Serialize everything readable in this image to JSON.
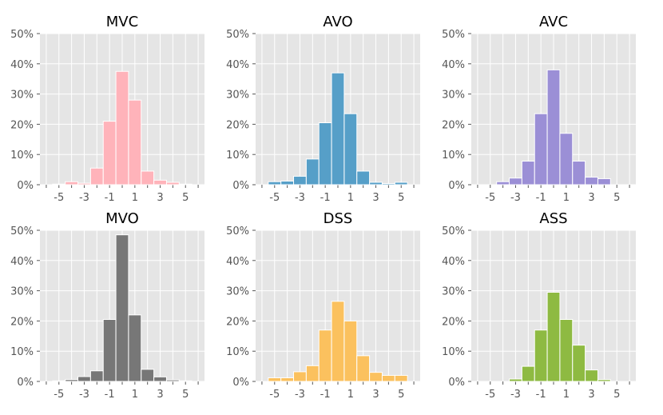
{
  "chart_data": [
    {
      "type": "bar",
      "title": "MVC",
      "color": "#ffb3ba",
      "bin_edges": [
        -5.5,
        -4.5,
        -3.5,
        -2.5,
        -1.5,
        -0.5,
        0.5,
        1.5,
        2.5,
        3.5,
        4.5,
        5.5
      ],
      "values": [
        0.2,
        1.0,
        0.5,
        5.5,
        21,
        37.5,
        28,
        4.5,
        1.5,
        0.8,
        0.2
      ],
      "xticks": [
        "-5",
        "-3",
        "-1",
        "1",
        "3",
        "5"
      ],
      "xlim": [
        -6.5,
        6.5
      ],
      "ylim": [
        0,
        50
      ],
      "yticks": [
        "0%",
        "10%",
        "20%",
        "30%",
        "40%",
        "50%"
      ]
    },
    {
      "type": "bar",
      "title": "AVO",
      "color": "#569fc8",
      "bin_edges": [
        -5.5,
        -4.5,
        -3.5,
        -2.5,
        -1.5,
        -0.5,
        0.5,
        1.5,
        2.5,
        3.5,
        4.5,
        5.5
      ],
      "values": [
        1.0,
        1.2,
        2.8,
        8.5,
        20.5,
        37,
        23.5,
        4.5,
        0.8,
        0.4,
        0.8
      ],
      "xticks": [
        "-5",
        "-3",
        "-1",
        "1",
        "3",
        "5"
      ],
      "xlim": [
        -6.5,
        6.5
      ],
      "ylim": [
        0,
        50
      ],
      "yticks": [
        "0%",
        "10%",
        "20%",
        "30%",
        "40%",
        "50%"
      ]
    },
    {
      "type": "bar",
      "title": "AVC",
      "color": "#9b8fd6",
      "bin_edges": [
        -4.5,
        -3.5,
        -2.5,
        -1.5,
        -0.5,
        0.5,
        1.5,
        2.5,
        3.5,
        4.5
      ],
      "values": [
        1.0,
        2.2,
        7.8,
        23.5,
        38,
        17,
        7.8,
        2.5,
        2.0
      ],
      "xticks": [
        "-5",
        "-3",
        "-1",
        "1",
        "3",
        "5"
      ],
      "xlim": [
        -6.5,
        6.5
      ],
      "ylim": [
        0,
        50
      ],
      "yticks": [
        "0%",
        "10%",
        "20%",
        "30%",
        "40%",
        "50%"
      ]
    },
    {
      "type": "bar",
      "title": "MVO",
      "color": "#777777",
      "bin_edges": [
        -5.5,
        -4.5,
        -3.5,
        -2.5,
        -1.5,
        -0.5,
        0.5,
        1.5,
        2.5,
        3.5,
        4.5,
        5.5
      ],
      "values": [
        0.2,
        0.6,
        1.6,
        3.5,
        20.5,
        48.5,
        22,
        4.0,
        1.5,
        0.5,
        0.2
      ],
      "xticks": [
        "-5",
        "-3",
        "-1",
        "1",
        "3",
        "5"
      ],
      "xlim": [
        -6.5,
        6.5
      ],
      "ylim": [
        0,
        50
      ],
      "yticks": [
        "0%",
        "10%",
        "20%",
        "30%",
        "40%",
        "50%"
      ]
    },
    {
      "type": "bar",
      "title": "DSS",
      "color": "#fbc15e",
      "bin_edges": [
        -5.5,
        -4.5,
        -3.5,
        -2.5,
        -1.5,
        -0.5,
        0.5,
        1.5,
        2.5,
        3.5,
        4.5,
        5.5
      ],
      "values": [
        1.2,
        1.2,
        3.2,
        5.2,
        17,
        26.5,
        20,
        8.5,
        3.0,
        2.0,
        2.0
      ],
      "xticks": [
        "-5",
        "-3",
        "-1",
        "1",
        "3",
        "5"
      ],
      "xlim": [
        -6.5,
        6.5
      ],
      "ylim": [
        0,
        50
      ],
      "yticks": [
        "0%",
        "10%",
        "20%",
        "30%",
        "40%",
        "50%"
      ]
    },
    {
      "type": "bar",
      "title": "ASS",
      "color": "#8eba42",
      "bin_edges": [
        -3.5,
        -2.5,
        -1.5,
        -0.5,
        0.5,
        1.5,
        2.5,
        3.5,
        4.5
      ],
      "values": [
        0.8,
        5.0,
        17,
        29.5,
        20.5,
        12,
        3.8,
        0.6
      ],
      "xticks": [
        "-5",
        "-3",
        "-1",
        "1",
        "3",
        "5"
      ],
      "xlim": [
        -6.5,
        6.5
      ],
      "ylim": [
        0,
        50
      ],
      "yticks": [
        "0%",
        "10%",
        "20%",
        "30%",
        "40%",
        "50%"
      ]
    }
  ]
}
